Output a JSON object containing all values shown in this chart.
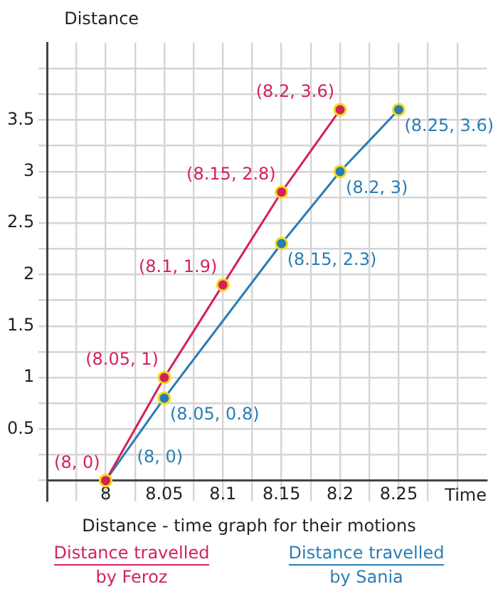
{
  "chart_data": {
    "type": "line",
    "title": "Distance - time graph for their motions",
    "xlabel": "Time",
    "ylabel": "Distance",
    "xlim": [
      7.95,
      8.325
    ],
    "ylim": [
      -0.2,
      4.25
    ],
    "xticks": [
      {
        "value": 7.975,
        "label": null
      },
      8,
      {
        "value": 8.025,
        "label": null
      },
      8.05,
      {
        "value": 8.075,
        "label": null
      },
      8.1,
      {
        "value": 8.125,
        "label": null
      },
      8.15,
      {
        "value": 8.175,
        "label": null
      },
      8.2,
      {
        "value": 8.225,
        "label": null
      },
      8.25,
      {
        "value": 8.275,
        "label": null
      },
      {
        "value": 8.3,
        "label": null
      }
    ],
    "yticks": [
      {
        "value": 0,
        "label": null
      },
      {
        "value": 0.25,
        "label": null
      },
      0.5,
      {
        "value": 0.75,
        "label": null
      },
      1,
      {
        "value": 1.25,
        "label": null
      },
      1.5,
      {
        "value": 1.75,
        "label": null
      },
      2,
      {
        "value": 2.25,
        "label": null
      },
      2.5,
      {
        "value": 2.75,
        "label": null
      },
      3,
      {
        "value": 3.25,
        "label": null
      },
      3.5,
      {
        "value": 3.75,
        "label": null
      },
      {
        "value": 4,
        "label": null
      }
    ],
    "grid": true,
    "legend": "bottom",
    "marker": "circle",
    "line_style": "solid",
    "series": [
      {
        "name": "Distance travelled by Feroz",
        "color": "#d4215a",
        "x": [
          8,
          8.05,
          8.1,
          8.15,
          8.2
        ],
        "values": [
          0,
          1,
          1.9,
          2.8,
          3.6
        ],
        "value_labels": [
          "(8, 0)",
          "(8.05, 1)",
          "(8.1, 1.9)",
          "(8.15, 2.8)",
          "(8.2, 3.6)"
        ]
      },
      {
        "name": "Distance travelled by Sania",
        "color": "#2a7db4",
        "x": [
          8,
          8.05,
          8.15,
          8.2,
          8.25
        ],
        "values": [
          0,
          0.8,
          2.3,
          3,
          3.6
        ],
        "value_labels": [
          "(8, 0)",
          "(8.05, 0.8)",
          "(8.15, 2.3)",
          "(8.2, 3)",
          "(8.25, 3.6)"
        ]
      }
    ]
  }
}
